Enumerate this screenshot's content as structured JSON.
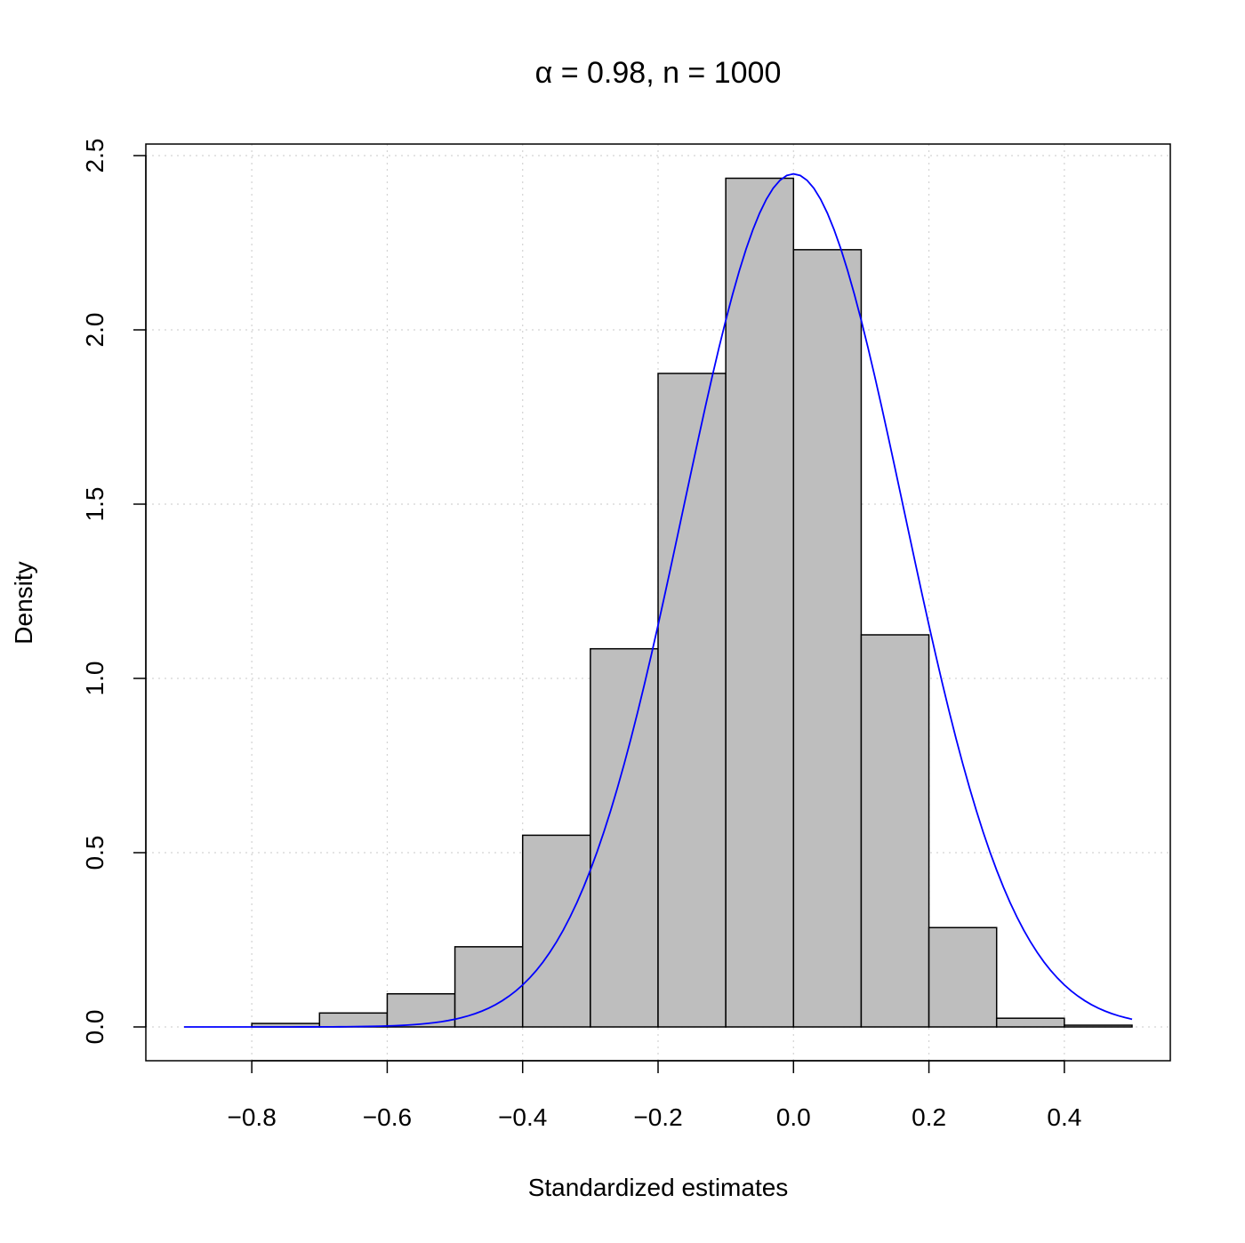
{
  "chart_data": {
    "type": "histogram",
    "title": "α = 0.98, n = 1000",
    "xlabel": "Standardized estimates",
    "ylabel": "Density",
    "xlim": [
      -0.9,
      0.5
    ],
    "ylim": [
      0,
      2.5
    ],
    "x_ticks": [
      -0.8,
      -0.6,
      -0.4,
      -0.2,
      0.0,
      0.2,
      0.4
    ],
    "x_tick_labels": [
      "−0.8",
      "−0.6",
      "−0.4",
      "−0.2",
      "0.0",
      "0.2",
      "0.4"
    ],
    "y_ticks": [
      0,
      0.5,
      1.0,
      1.5,
      2.0,
      2.5
    ],
    "y_tick_labels": [
      "0.0",
      "0.5",
      "1.0",
      "1.5",
      "2.0",
      "2.5"
    ],
    "grid": true,
    "bins": [
      {
        "from": -0.8,
        "to": -0.7,
        "density": 0.01
      },
      {
        "from": -0.7,
        "to": -0.6,
        "density": 0.04
      },
      {
        "from": -0.6,
        "to": -0.5,
        "density": 0.095
      },
      {
        "from": -0.5,
        "to": -0.4,
        "density": 0.23
      },
      {
        "from": -0.4,
        "to": -0.3,
        "density": 0.55
      },
      {
        "from": -0.3,
        "to": -0.2,
        "density": 1.085
      },
      {
        "from": -0.2,
        "to": -0.1,
        "density": 1.875
      },
      {
        "from": -0.1,
        "to": 0.0,
        "density": 2.435
      },
      {
        "from": 0.0,
        "to": 0.1,
        "density": 2.23
      },
      {
        "from": 0.1,
        "to": 0.2,
        "density": 1.125
      },
      {
        "from": 0.2,
        "to": 0.3,
        "density": 0.285
      },
      {
        "from": 0.3,
        "to": 0.4,
        "density": 0.025
      },
      {
        "from": 0.4,
        "to": 0.5,
        "density": 0.005
      }
    ],
    "series": [
      {
        "type": "line",
        "distribution": "normal",
        "mean": 0.0,
        "sd": 0.163,
        "x_range": [
          -0.9,
          0.5
        ],
        "color": "#0000ff"
      }
    ],
    "bar_color": "#bebebe"
  }
}
